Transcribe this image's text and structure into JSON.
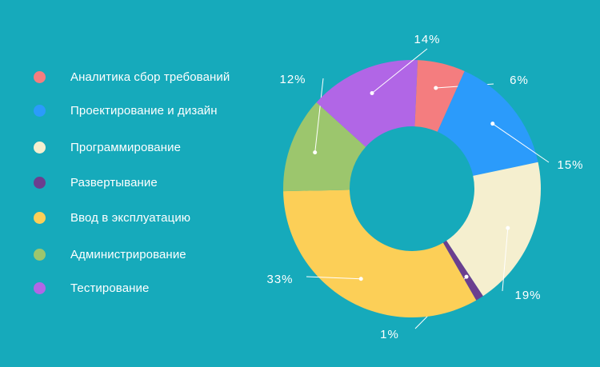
{
  "chart_data": {
    "type": "pie",
    "style": "donut",
    "legend_position": "left",
    "categories": [
      "Аналитика сбор требований",
      "Проектирование и дизайн",
      "Программирование",
      "Развертывание",
      "Ввод в эксплуатацию",
      "Администрирование",
      "Тестирование"
    ],
    "values": [
      6,
      15,
      19,
      1,
      33,
      12,
      14
    ],
    "value_labels": [
      "6%",
      "15%",
      "19%",
      "1%",
      "33%",
      "12%",
      "14%"
    ],
    "colors": [
      "#f47d7f",
      "#2b9bfb",
      "#f5efcf",
      "#6b3f8f",
      "#fccf57",
      "#9cc66d",
      "#b166e6"
    ]
  },
  "legend": {
    "items": [
      {
        "label": "Аналитика сбор требований",
        "color": "#f47d7f"
      },
      {
        "label": "Проектирование и дизайн",
        "color": "#2b9bfb"
      },
      {
        "label": "Программирование",
        "color": "#f5efcf"
      },
      {
        "label": "Развертывание",
        "color": "#6b3f8f"
      },
      {
        "label": "Ввод в эксплуатацию",
        "color": "#fccf57"
      },
      {
        "label": "Администрирование",
        "color": "#9cc66d"
      },
      {
        "label": "Тестирование",
        "color": "#b166e6"
      }
    ]
  },
  "colors": {
    "background": "#16aabb",
    "text": "#ffffff"
  }
}
